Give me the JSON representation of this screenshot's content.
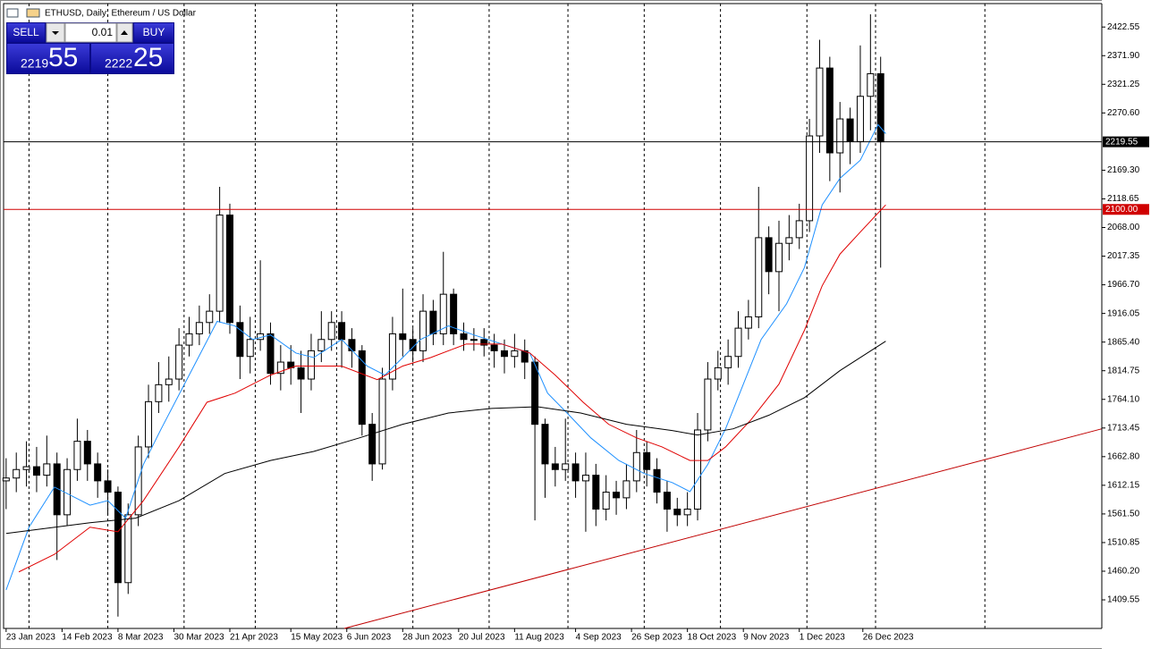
{
  "header": {
    "title": "ETHUSD, Daily: Ethereum / US Dollar"
  },
  "trade_panel": {
    "sell": "SELL",
    "buy": "BUY",
    "lot": "0.01",
    "sell_main": "2219",
    "sell_big": "55",
    "buy_main": "2222",
    "buy_big": "25"
  },
  "chart_data": {
    "type": "candlestick",
    "xlim": [
      -1,
      431
    ],
    "ylim": [
      1359,
      2464
    ],
    "yticks": [
      2422.55,
      {
        "value": 2371.9,
        "label": "2371.90"
      },
      2321.25,
      {
        "value": 2270.6,
        "label": "2270.60"
      },
      {
        "value": 2169.3,
        "label": "2169.30"
      },
      2118.65,
      {
        "value": 2068,
        "label": "2068.00"
      },
      2017.35,
      {
        "value": 1966.7,
        "label": "1966.70"
      },
      1916.05,
      {
        "value": 1865.4,
        "label": "1865.40"
      },
      1814.75,
      {
        "value": 1764.1,
        "label": "1764.10"
      },
      1713.45,
      {
        "value": 1662.8,
        "label": "1662.80"
      },
      1612.15,
      {
        "value": 1561.5,
        "label": "1561.50"
      },
      1510.85,
      {
        "value": 1460.2,
        "label": "1460.20"
      },
      1409.55
    ],
    "xticks": [
      {
        "value": 0,
        "label": "23 Jan 2023"
      },
      {
        "value": 22,
        "label": "14 Feb 2023"
      },
      {
        "value": 44,
        "label": "8 Mar 2023"
      },
      {
        "value": 66,
        "label": "30 Mar 2023"
      },
      {
        "value": 88,
        "label": "21 Apr 2023"
      },
      {
        "value": 112,
        "label": "15 May 2023"
      },
      {
        "value": 134,
        "label": "6 Jun 2023"
      },
      {
        "value": 156,
        "label": "28 Jun 2023"
      },
      {
        "value": 178,
        "label": "20 Jul 2023"
      },
      {
        "value": 200,
        "label": "11 Aug 2023"
      },
      {
        "value": 224,
        "label": "4 Sep 2023"
      },
      {
        "value": 246,
        "label": "26 Sep 2023"
      },
      {
        "value": 268,
        "label": "18 Oct 2023"
      },
      {
        "value": 290,
        "label": "9 Nov 2023"
      },
      {
        "value": 312,
        "label": "1 Dec 2023"
      },
      {
        "value": 337,
        "label": "26 Dec 2023"
      }
    ],
    "xgrid": [
      9,
      40,
      70,
      98,
      130,
      160,
      190,
      221,
      251,
      281,
      315,
      342,
      385
    ],
    "x": [
      0,
      4,
      8,
      12,
      16,
      20,
      24,
      28,
      32,
      36,
      40,
      44,
      48,
      52,
      56,
      60,
      64,
      68,
      72,
      76,
      80,
      84,
      88,
      92,
      96,
      100,
      104,
      108,
      112,
      116,
      120,
      124,
      128,
      132,
      136,
      140,
      144,
      148,
      152,
      156,
      160,
      164,
      168,
      172,
      176,
      180,
      184,
      188,
      192,
      196,
      200,
      204,
      208,
      212,
      216,
      220,
      224,
      228,
      232,
      236,
      240,
      244,
      248,
      252,
      256,
      260,
      264,
      268,
      272,
      276,
      280,
      284,
      288,
      292,
      296,
      300,
      304,
      308,
      312,
      316,
      320,
      324,
      328,
      332,
      336,
      340,
      344
    ],
    "open": [
      1620,
      1625,
      1640,
      1645,
      1630,
      1650,
      1560,
      1640,
      1690,
      1650,
      1620,
      1600,
      1440,
      1560,
      1680,
      1760,
      1790,
      1800,
      1860,
      1880,
      1900,
      1920,
      2090,
      1900,
      1840,
      1870,
      1880,
      1810,
      1830,
      1820,
      1800,
      1850,
      1870,
      1900,
      1870,
      1850,
      1720,
      1650,
      1800,
      1880,
      1870,
      1850,
      1920,
      1880,
      1950,
      1880,
      1870,
      1870,
      1860,
      1850,
      1840,
      1850,
      1830,
      1720,
      1650,
      1640,
      1650,
      1620,
      1630,
      1570,
      1600,
      1590,
      1620,
      1670,
      1640,
      1600,
      1570,
      1560,
      1570,
      1710,
      1800,
      1820,
      1840,
      1890,
      1910,
      2050,
      1990,
      2040,
      2050,
      2080,
      2230,
      2350,
      2200,
      2260,
      2220,
      2300,
      2340
    ],
    "high": [
      1660,
      1670,
      1690,
      1680,
      1700,
      1670,
      1660,
      1730,
      1710,
      1670,
      1640,
      1610,
      1580,
      1700,
      1790,
      1830,
      1840,
      1890,
      1910,
      1930,
      1950,
      2140,
      2110,
      1930,
      1910,
      2010,
      1900,
      1860,
      1860,
      1850,
      1880,
      1920,
      1920,
      1920,
      1890,
      1860,
      1740,
      1820,
      1910,
      1960,
      1890,
      1950,
      1940,
      2025,
      1960,
      1900,
      1890,
      1890,
      1880,
      1870,
      1880,
      1870,
      1840,
      1730,
      1680,
      1730,
      1670,
      1670,
      1650,
      1630,
      1620,
      1650,
      1710,
      1690,
      1660,
      1620,
      1590,
      1600,
      1740,
      1830,
      1850,
      1870,
      1920,
      1940,
      2140,
      2070,
      2080,
      2090,
      2110,
      2260,
      2400,
      2370,
      2290,
      2280,
      2390,
      2445,
      2370
    ],
    "low": [
      1570,
      1600,
      1610,
      1600,
      1610,
      1480,
      1540,
      1620,
      1620,
      1590,
      1560,
      1380,
      1420,
      1540,
      1660,
      1740,
      1760,
      1780,
      1840,
      1860,
      1880,
      1900,
      1880,
      1800,
      1810,
      1850,
      1790,
      1780,
      1790,
      1740,
      1780,
      1830,
      1850,
      1820,
      1820,
      1700,
      1620,
      1640,
      1780,
      1840,
      1830,
      1830,
      1860,
      1860,
      1860,
      1850,
      1850,
      1840,
      1820,
      1810,
      1820,
      1800,
      1550,
      1590,
      1610,
      1620,
      1590,
      1530,
      1540,
      1550,
      1560,
      1570,
      1600,
      1610,
      1580,
      1530,
      1540,
      1540,
      1550,
      1690,
      1780,
      1790,
      1820,
      1870,
      1890,
      1950,
      1920,
      2010,
      2030,
      2060,
      2200,
      2150,
      2130,
      2180,
      2200,
      2240,
      1997
    ],
    "close": [
      1625,
      1640,
      1645,
      1630,
      1650,
      1560,
      1640,
      1690,
      1650,
      1620,
      1600,
      1440,
      1560,
      1680,
      1760,
      1790,
      1800,
      1860,
      1880,
      1900,
      1920,
      2090,
      1900,
      1840,
      1870,
      1880,
      1810,
      1830,
      1820,
      1800,
      1850,
      1870,
      1900,
      1870,
      1850,
      1720,
      1650,
      1800,
      1880,
      1870,
      1850,
      1920,
      1880,
      1950,
      1880,
      1870,
      1870,
      1860,
      1850,
      1840,
      1850,
      1830,
      1720,
      1650,
      1640,
      1650,
      1620,
      1630,
      1570,
      1600,
      1590,
      1620,
      1670,
      1640,
      1600,
      1570,
      1560,
      1570,
      1710,
      1800,
      1820,
      1840,
      1890,
      1910,
      2050,
      1990,
      2040,
      2050,
      2080,
      2230,
      2350,
      2200,
      2260,
      2220,
      2300,
      2340,
      2219.55
    ],
    "lines": [
      {
        "color": "#1e90ff",
        "x": [
          0,
          9,
          19,
          33,
          40,
          47,
          54,
          61,
          72,
          83,
          90,
          97,
          104,
          114,
          121,
          132,
          142,
          149,
          156,
          163,
          174,
          184,
          195,
          206,
          213,
          220,
          230,
          241,
          251,
          262,
          269,
          276,
          283,
          290,
          297,
          307,
          314,
          321,
          328,
          336,
          343,
          346
        ],
        "values": [
          1427,
          1538,
          1609,
          1577,
          1585,
          1554,
          1649,
          1712,
          1807,
          1902,
          1894,
          1870,
          1878,
          1846,
          1838,
          1870,
          1823,
          1807,
          1838,
          1870,
          1894,
          1878,
          1862,
          1846,
          1775,
          1743,
          1696,
          1656,
          1633,
          1617,
          1601,
          1649,
          1712,
          1791,
          1870,
          1933,
          1997,
          2108,
          2155,
          2187,
          2250,
          2234
        ]
      },
      {
        "color": "#e00000",
        "x": [
          5,
          19,
          33,
          44,
          54,
          68,
          79,
          90,
          104,
          114,
          132,
          146,
          156,
          167,
          181,
          195,
          206,
          216,
          227,
          237,
          248,
          258,
          269,
          276,
          283,
          293,
          304,
          314,
          321,
          328,
          336,
          346
        ],
        "values": [
          1459,
          1490,
          1538,
          1530,
          1585,
          1680,
          1759,
          1775,
          1807,
          1823,
          1823,
          1799,
          1823,
          1838,
          1862,
          1862,
          1846,
          1807,
          1759,
          1720,
          1696,
          1680,
          1656,
          1656,
          1680,
          1728,
          1791,
          1886,
          1965,
          2021,
          2060,
          2108
        ]
      },
      {
        "color": "#000000",
        "x": [
          0,
          33,
          51,
          68,
          86,
          104,
          121,
          139,
          156,
          174,
          191,
          209,
          226,
          244,
          262,
          272,
          286,
          300,
          314,
          328,
          346
        ],
        "values": [
          1527,
          1546,
          1554,
          1585,
          1633,
          1656,
          1672,
          1696,
          1720,
          1740,
          1748,
          1751,
          1740,
          1720,
          1709,
          1701,
          1712,
          1736,
          1767,
          1815,
          1867
        ]
      },
      {
        "color": "#c00000",
        "x": [
          133,
          431
        ],
        "values": [
          1359,
          1712
        ]
      }
    ],
    "hlines": [
      {
        "value": 2219.55,
        "color": "#000000"
      },
      {
        "value": 2100,
        "label": "2100.00",
        "color": "#d00000"
      }
    ]
  }
}
